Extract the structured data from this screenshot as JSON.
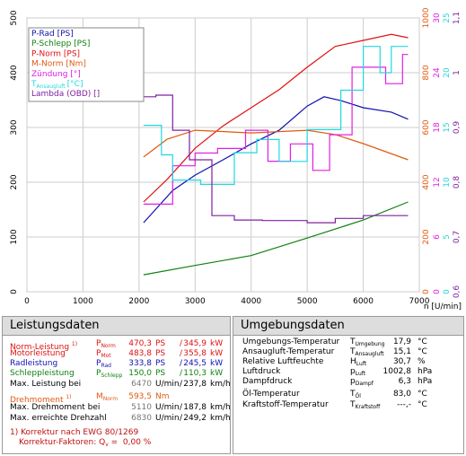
{
  "chart_data": {
    "type": "line",
    "xlabel": "n [U/min]",
    "xlim": [
      0,
      7000
    ],
    "xticks": [
      0,
      1000,
      2000,
      3000,
      4000,
      5000,
      6000,
      7000
    ],
    "ylim": [
      0,
      500
    ],
    "yticks": [
      0,
      100,
      200,
      300,
      400,
      500
    ],
    "grid": true,
    "right_axes": [
      {
        "color": "#e05a10",
        "ylim": [
          0,
          1000
        ],
        "yticks": [
          0,
          200,
          400,
          600,
          800,
          1000
        ]
      },
      {
        "color": "#e020e0",
        "ylim": [
          0,
          30
        ],
        "yticks": [
          0,
          6,
          12,
          18,
          24,
          30
        ]
      },
      {
        "color": "#20d8e0",
        "ylim": [
          0,
          25
        ],
        "yticks": [
          0,
          5,
          10,
          15,
          20,
          25
        ]
      },
      {
        "color": "#8020a0",
        "ylim": [
          0.6,
          1.1
        ],
        "yticks": [
          {
            "value": 0.6,
            "label": "0,6"
          },
          {
            "value": 0.7,
            "label": "0,7"
          },
          {
            "value": 0.8,
            "label": "0,8"
          },
          {
            "value": 0.9,
            "label": "0,9"
          },
          {
            "value": 1,
            "label": "1"
          },
          {
            "value": 1.1,
            "label": "1,1"
          }
        ]
      }
    ],
    "series": [
      {
        "name": "P-Rad [PS]",
        "color": "#1010b0",
        "x": [
          2080,
          2600,
          3000,
          3500,
          4000,
          4500,
          5000,
          5300,
          5600,
          6000,
          6500,
          6800
        ],
        "values": [
          126,
          185,
          213,
          241,
          270,
          295,
          339,
          356,
          349,
          336,
          328,
          315
        ]
      },
      {
        "name": "P-Schlepp [PS]",
        "color": "#108010",
        "x": [
          2080,
          3000,
          4000,
          5000,
          6000,
          6800
        ],
        "values": [
          31,
          48,
          66,
          98,
          131,
          164
        ]
      },
      {
        "name": "P-Norm [PS]",
        "color": "#e01010",
        "x": [
          2080,
          2500,
          3000,
          3500,
          4000,
          4500,
          5000,
          5500,
          6000,
          6500,
          6800
        ],
        "values": [
          164,
          205,
          262,
          303,
          336,
          369,
          410,
          448,
          459,
          470,
          464
        ]
      },
      {
        "name": "M-Norm [Nm]",
        "color": "#e05a10",
        "axis": 0,
        "x": [
          2080,
          2500,
          3000,
          4000,
          5000,
          5500,
          6000,
          6800
        ],
        "values": [
          492,
          557,
          590,
          580,
          590,
          574,
          541,
          482
        ]
      },
      {
        "name": "Zündung [°]",
        "color": "#e020e0",
        "axis": 1,
        "x": [
          2080,
          2600,
          2600,
          3000,
          3000,
          3400,
          3400,
          3900,
          3900,
          4300,
          4300,
          4700,
          4700,
          5100,
          5100,
          5400,
          5400,
          5800,
          5800,
          6400,
          6400,
          6700,
          6700,
          6800
        ],
        "values": [
          9.6,
          9.6,
          13.8,
          13.8,
          15.2,
          15.2,
          15.7,
          15.7,
          17.7,
          17.7,
          14.3,
          14.3,
          16.2,
          16.2,
          13.3,
          13.3,
          17.2,
          17.2,
          24.6,
          24.6,
          22.8,
          22.8,
          26,
          26
        ]
      },
      {
        "name": "T",
        "name_sub": "Ansaugluft",
        "name_unit": "[°C]",
        "color": "#20d8e0",
        "axis": 2,
        "x": [
          2080,
          2400,
          2400,
          2600,
          2600,
          3100,
          3100,
          3700,
          3700,
          4100,
          4100,
          4500,
          4500,
          5000,
          5000,
          5600,
          5600,
          6000,
          6000,
          6300,
          6300,
          6500,
          6500,
          6800
        ],
        "values": [
          15.2,
          15.2,
          12.5,
          12.5,
          10.2,
          10.2,
          9.8,
          9.8,
          12.7,
          12.7,
          13.9,
          13.9,
          11.9,
          11.9,
          14.8,
          14.8,
          18.4,
          18.4,
          22.4,
          22.4,
          20,
          20,
          22.4,
          22.4
        ]
      },
      {
        "name": "Lambda (OBD) []",
        "color": "#8020a0",
        "axis": 3,
        "x": [
          2080,
          2300,
          2300,
          2600,
          2600,
          2900,
          2900,
          3300,
          3300,
          3700,
          3700,
          4200,
          4200,
          5000,
          5000,
          5500,
          5500,
          6000,
          6000,
          6800
        ],
        "values": [
          0.956,
          0.956,
          0.959,
          0.959,
          0.895,
          0.895,
          0.841,
          0.841,
          0.739,
          0.739,
          0.731,
          0.731,
          0.73,
          0.73,
          0.726,
          0.726,
          0.734,
          0.734,
          0.739,
          0.739
        ]
      }
    ]
  },
  "leistungsdaten": {
    "title": "Leistungsdaten",
    "rows": [
      {
        "label": "Norm-Leistung",
        "note": "1)",
        "color": "#e01010",
        "symbol": "P",
        "sub": "Norm",
        "v1": "470,3",
        "u1": "PS",
        "sep": "/",
        "v2": "345,9",
        "u2": "kW"
      },
      {
        "label": "Motorleistung",
        "color": "#e01010",
        "symbol": "P",
        "sub": "Mot",
        "v1": "483,8",
        "u1": "PS",
        "sep": "/",
        "v2": "355,8",
        "u2": "kW"
      },
      {
        "label": "Radleistung",
        "color": "#1010b0",
        "symbol": "P",
        "sub": "Rad",
        "v1": "333,8",
        "u1": "PS",
        "sep": "/",
        "v2": "245,5",
        "u2": "kW"
      },
      {
        "label": "Schleppleistung",
        "color": "#108010",
        "symbol": "P",
        "sub": "Schlepp",
        "v1": "150,0",
        "u1": "PS",
        "sep": "/",
        "v2": "110,3",
        "u2": "kW"
      },
      {
        "label": "Max. Leistung bei",
        "color": "#000",
        "v1": "6470",
        "u1": "U/min",
        "sep": "/",
        "v2": "237,8",
        "u2": "km/h"
      },
      {
        "label": "Drehmoment",
        "note": "1)",
        "color": "#e05a10",
        "symbol": "M",
        "sub": "Norm",
        "v1": "593,5",
        "u1": "Nm"
      },
      {
        "label": "Max. Drehmoment bei",
        "color": "#000",
        "v1": "5110",
        "u1": "U/min",
        "sep": "/",
        "v2": "187,8",
        "u2": "km/h"
      },
      {
        "label": "Max. erreichte Drehzahl",
        "color": "#000",
        "v1": "6830",
        "u1": "U/min",
        "sep": "/",
        "v2": "249,2",
        "u2": "km/h"
      }
    ],
    "footnote": "1) Korrektur nach EWG 80/1269",
    "factors": "Korrektur-Faktoren: Q",
    "factors_sub": "v",
    "factors_value": "=  0,00 %"
  },
  "umgebungsdaten": {
    "title": "Umgebungsdaten",
    "rows": [
      {
        "label": "Umgebungs-Temperatur",
        "symbol": "T",
        "sub": "Umgebung",
        "v1": "17,9",
        "u1": "°C"
      },
      {
        "label": "Ansaugluft-Temperatur",
        "symbol": "T",
        "sub": "Ansaugluft",
        "v1": "15,1",
        "u1": "°C"
      },
      {
        "label": "Relative Luftfeuchte",
        "symbol": "H",
        "sub": "Luft",
        "v1": "30,7",
        "u1": "%"
      },
      {
        "label": "Luftdruck",
        "symbol": "p",
        "sub": "Luft",
        "v1": "1002,8",
        "u1": "hPa"
      },
      {
        "label": "Dampfdruck",
        "symbol": "p",
        "sub": "Dampf",
        "v1": "6,3",
        "u1": "hPa"
      },
      {
        "label": "Öl-Temperatur",
        "symbol": "T",
        "sub": "Öl",
        "v1": "83,0",
        "u1": "°C"
      },
      {
        "label": "Kraftstoff-Temperatur",
        "symbol": "T",
        "sub": "Kraftstoff",
        "v1": "---,-",
        "u1": "°C"
      }
    ]
  }
}
